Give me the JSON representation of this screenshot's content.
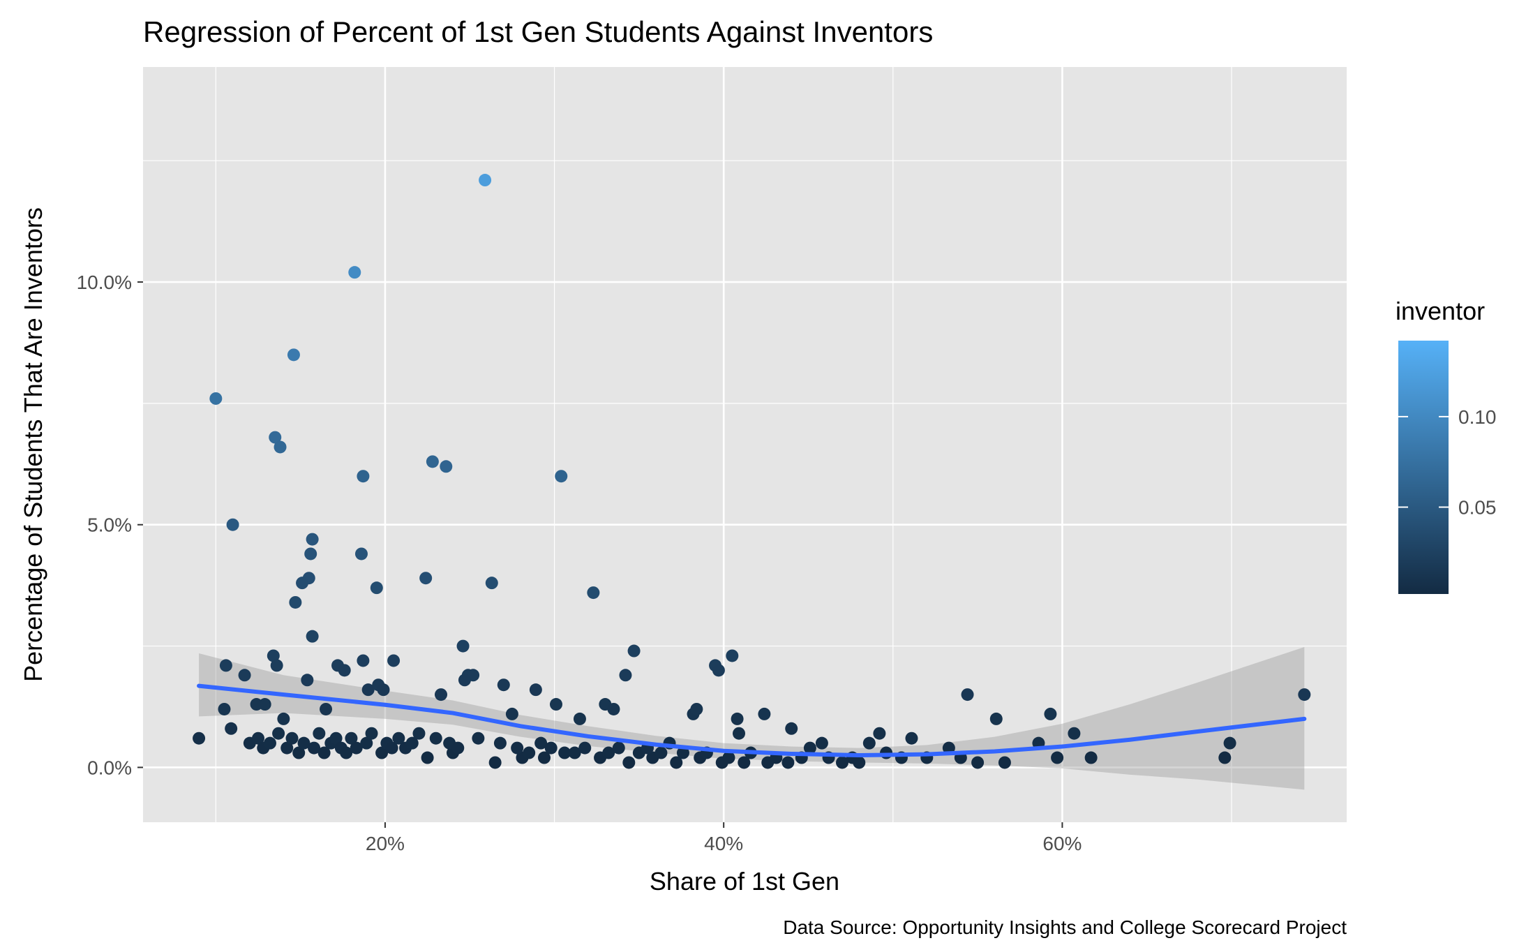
{
  "chart_data": {
    "type": "scatter",
    "title": "Regression of Percent of 1st Gen Students Against Inventors",
    "xlabel": "Share of 1st Gen",
    "ylabel": "Percentage of Students That Are Inventors",
    "caption": "Data Source: Opportunity Insights and College Scorecard Project",
    "xlim": [
      0.057,
      0.768
    ],
    "ylim": [
      -0.0113,
      0.1443
    ],
    "x_ticks": [
      {
        "value": 0.2,
        "label": "20%"
      },
      {
        "value": 0.4,
        "label": "40%"
      },
      {
        "value": 0.6,
        "label": "60%"
      }
    ],
    "y_ticks": [
      {
        "value": 0.0,
        "label": "0.0%"
      },
      {
        "value": 0.05,
        "label": "5.0%"
      },
      {
        "value": 0.1,
        "label": "10.0%"
      }
    ],
    "grid": true,
    "legend": {
      "title": "inventor",
      "position": "right",
      "scale_min": 0.002,
      "scale_max": 0.142,
      "color_low": "#132B43",
      "color_high": "#56B1F7",
      "ticks": [
        {
          "value": 0.05,
          "label": "0.05"
        },
        {
          "value": 0.1,
          "label": "0.10"
        }
      ]
    },
    "point_color_scale": "inventor",
    "points": [
      [
        0.259,
        0.121
      ],
      [
        0.182,
        0.102
      ],
      [
        0.146,
        0.085
      ],
      [
        0.1,
        0.076
      ],
      [
        0.135,
        0.068
      ],
      [
        0.138,
        0.066
      ],
      [
        0.228,
        0.063
      ],
      [
        0.236,
        0.062
      ],
      [
        0.187,
        0.06
      ],
      [
        0.304,
        0.06
      ],
      [
        0.11,
        0.05
      ],
      [
        0.157,
        0.047
      ],
      [
        0.156,
        0.044
      ],
      [
        0.186,
        0.044
      ],
      [
        0.224,
        0.039
      ],
      [
        0.155,
        0.039
      ],
      [
        0.151,
        0.038
      ],
      [
        0.263,
        0.038
      ],
      [
        0.195,
        0.037
      ],
      [
        0.323,
        0.036
      ],
      [
        0.147,
        0.034
      ],
      [
        0.157,
        0.027
      ],
      [
        0.246,
        0.025
      ],
      [
        0.347,
        0.024
      ],
      [
        0.134,
        0.023
      ],
      [
        0.405,
        0.023
      ],
      [
        0.106,
        0.021
      ],
      [
        0.136,
        0.021
      ],
      [
        0.187,
        0.022
      ],
      [
        0.205,
        0.022
      ],
      [
        0.395,
        0.021
      ],
      [
        0.397,
        0.02
      ],
      [
        0.172,
        0.021
      ],
      [
        0.176,
        0.02
      ],
      [
        0.342,
        0.019
      ],
      [
        0.117,
        0.019
      ],
      [
        0.154,
        0.018
      ],
      [
        0.249,
        0.019
      ],
      [
        0.252,
        0.019
      ],
      [
        0.247,
        0.018
      ],
      [
        0.27,
        0.017
      ],
      [
        0.19,
        0.016
      ],
      [
        0.196,
        0.017
      ],
      [
        0.199,
        0.016
      ],
      [
        0.289,
        0.016
      ],
      [
        0.233,
        0.015
      ],
      [
        0.544,
        0.015
      ],
      [
        0.743,
        0.015
      ],
      [
        0.301,
        0.013
      ],
      [
        0.33,
        0.013
      ],
      [
        0.335,
        0.012
      ],
      [
        0.129,
        0.013
      ],
      [
        0.124,
        0.013
      ],
      [
        0.105,
        0.012
      ],
      [
        0.382,
        0.011
      ],
      [
        0.384,
        0.012
      ],
      [
        0.424,
        0.011
      ],
      [
        0.593,
        0.011
      ],
      [
        0.14,
        0.01
      ],
      [
        0.275,
        0.011
      ],
      [
        0.165,
        0.012
      ],
      [
        0.408,
        0.01
      ],
      [
        0.561,
        0.01
      ],
      [
        0.44,
        0.008
      ],
      [
        0.315,
        0.01
      ],
      [
        0.109,
        0.008
      ],
      [
        0.607,
        0.007
      ],
      [
        0.409,
        0.007
      ],
      [
        0.586,
        0.005
      ],
      [
        0.699,
        0.005
      ],
      [
        0.09,
        0.006
      ],
      [
        0.511,
        0.006
      ],
      [
        0.492,
        0.007
      ],
      [
        0.458,
        0.005
      ],
      [
        0.451,
        0.004
      ],
      [
        0.533,
        0.004
      ],
      [
        0.486,
        0.005
      ],
      [
        0.617,
        0.002
      ],
      [
        0.696,
        0.002
      ],
      [
        0.597,
        0.002
      ],
      [
        0.566,
        0.001
      ],
      [
        0.55,
        0.001
      ],
      [
        0.505,
        0.002
      ],
      [
        0.47,
        0.001
      ],
      [
        0.24,
        0.003
      ],
      [
        0.225,
        0.002
      ],
      [
        0.265,
        0.001
      ],
      [
        0.281,
        0.002
      ],
      [
        0.294,
        0.002
      ],
      [
        0.312,
        0.003
      ],
      [
        0.327,
        0.002
      ],
      [
        0.344,
        0.001
      ],
      [
        0.358,
        0.002
      ],
      [
        0.372,
        0.001
      ],
      [
        0.386,
        0.002
      ],
      [
        0.399,
        0.001
      ],
      [
        0.412,
        0.001
      ],
      [
        0.426,
        0.001
      ],
      [
        0.438,
        0.001
      ],
      [
        0.48,
        0.001
      ],
      [
        0.12,
        0.005
      ],
      [
        0.125,
        0.006
      ],
      [
        0.128,
        0.004
      ],
      [
        0.132,
        0.005
      ],
      [
        0.137,
        0.007
      ],
      [
        0.142,
        0.004
      ],
      [
        0.145,
        0.006
      ],
      [
        0.149,
        0.003
      ],
      [
        0.152,
        0.005
      ],
      [
        0.158,
        0.004
      ],
      [
        0.161,
        0.007
      ],
      [
        0.164,
        0.003
      ],
      [
        0.168,
        0.005
      ],
      [
        0.171,
        0.006
      ],
      [
        0.174,
        0.004
      ],
      [
        0.177,
        0.003
      ],
      [
        0.18,
        0.006
      ],
      [
        0.183,
        0.004
      ],
      [
        0.189,
        0.005
      ],
      [
        0.192,
        0.007
      ],
      [
        0.198,
        0.003
      ],
      [
        0.201,
        0.005
      ],
      [
        0.204,
        0.004
      ],
      [
        0.208,
        0.006
      ],
      [
        0.212,
        0.004
      ],
      [
        0.216,
        0.005
      ],
      [
        0.22,
        0.007
      ],
      [
        0.23,
        0.006
      ],
      [
        0.238,
        0.005
      ],
      [
        0.243,
        0.004
      ],
      [
        0.255,
        0.006
      ],
      [
        0.268,
        0.005
      ],
      [
        0.278,
        0.004
      ],
      [
        0.285,
        0.003
      ],
      [
        0.292,
        0.005
      ],
      [
        0.298,
        0.004
      ],
      [
        0.306,
        0.003
      ],
      [
        0.318,
        0.004
      ],
      [
        0.332,
        0.003
      ],
      [
        0.338,
        0.004
      ],
      [
        0.35,
        0.003
      ],
      [
        0.355,
        0.004
      ],
      [
        0.363,
        0.003
      ],
      [
        0.368,
        0.005
      ],
      [
        0.376,
        0.003
      ],
      [
        0.39,
        0.003
      ],
      [
        0.403,
        0.002
      ],
      [
        0.416,
        0.003
      ],
      [
        0.431,
        0.002
      ],
      [
        0.446,
        0.002
      ],
      [
        0.462,
        0.002
      ],
      [
        0.476,
        0.002
      ],
      [
        0.496,
        0.003
      ],
      [
        0.52,
        0.002
      ],
      [
        0.54,
        0.002
      ]
    ],
    "fit_line": [
      [
        0.09,
        0.0168
      ],
      [
        0.14,
        0.015
      ],
      [
        0.2,
        0.0129
      ],
      [
        0.24,
        0.0112
      ],
      [
        0.28,
        0.0085
      ],
      [
        0.32,
        0.0064
      ],
      [
        0.36,
        0.0047
      ],
      [
        0.4,
        0.0034
      ],
      [
        0.44,
        0.0028
      ],
      [
        0.48,
        0.0025
      ],
      [
        0.52,
        0.0027
      ],
      [
        0.56,
        0.0033
      ],
      [
        0.6,
        0.0043
      ],
      [
        0.64,
        0.0057
      ],
      [
        0.68,
        0.0074
      ],
      [
        0.743,
        0.01
      ]
    ],
    "fit_ci_upper": [
      [
        0.09,
        0.0235
      ],
      [
        0.14,
        0.019
      ],
      [
        0.2,
        0.0158
      ],
      [
        0.24,
        0.0138
      ],
      [
        0.28,
        0.0108
      ],
      [
        0.32,
        0.0085
      ],
      [
        0.36,
        0.0065
      ],
      [
        0.4,
        0.005
      ],
      [
        0.44,
        0.0043
      ],
      [
        0.48,
        0.004
      ],
      [
        0.52,
        0.0046
      ],
      [
        0.56,
        0.0063
      ],
      [
        0.6,
        0.009
      ],
      [
        0.64,
        0.013
      ],
      [
        0.68,
        0.0175
      ],
      [
        0.743,
        0.0248
      ]
    ],
    "fit_ci_lower": [
      [
        0.09,
        0.0105
      ],
      [
        0.14,
        0.0112
      ],
      [
        0.2,
        0.01
      ],
      [
        0.24,
        0.0088
      ],
      [
        0.28,
        0.0063
      ],
      [
        0.32,
        0.0044
      ],
      [
        0.36,
        0.003
      ],
      [
        0.4,
        0.0018
      ],
      [
        0.44,
        0.0013
      ],
      [
        0.48,
        0.001
      ],
      [
        0.52,
        0.0008
      ],
      [
        0.56,
        0.0004
      ],
      [
        0.6,
        -0.0002
      ],
      [
        0.64,
        -0.0015
      ],
      [
        0.68,
        -0.0025
      ],
      [
        0.743,
        -0.0046
      ]
    ],
    "colors": {
      "panel_bg": "#E5E5E5",
      "grid": "#FFFFFF",
      "fit_line": "#3366FF",
      "ribbon": "#999999"
    }
  }
}
